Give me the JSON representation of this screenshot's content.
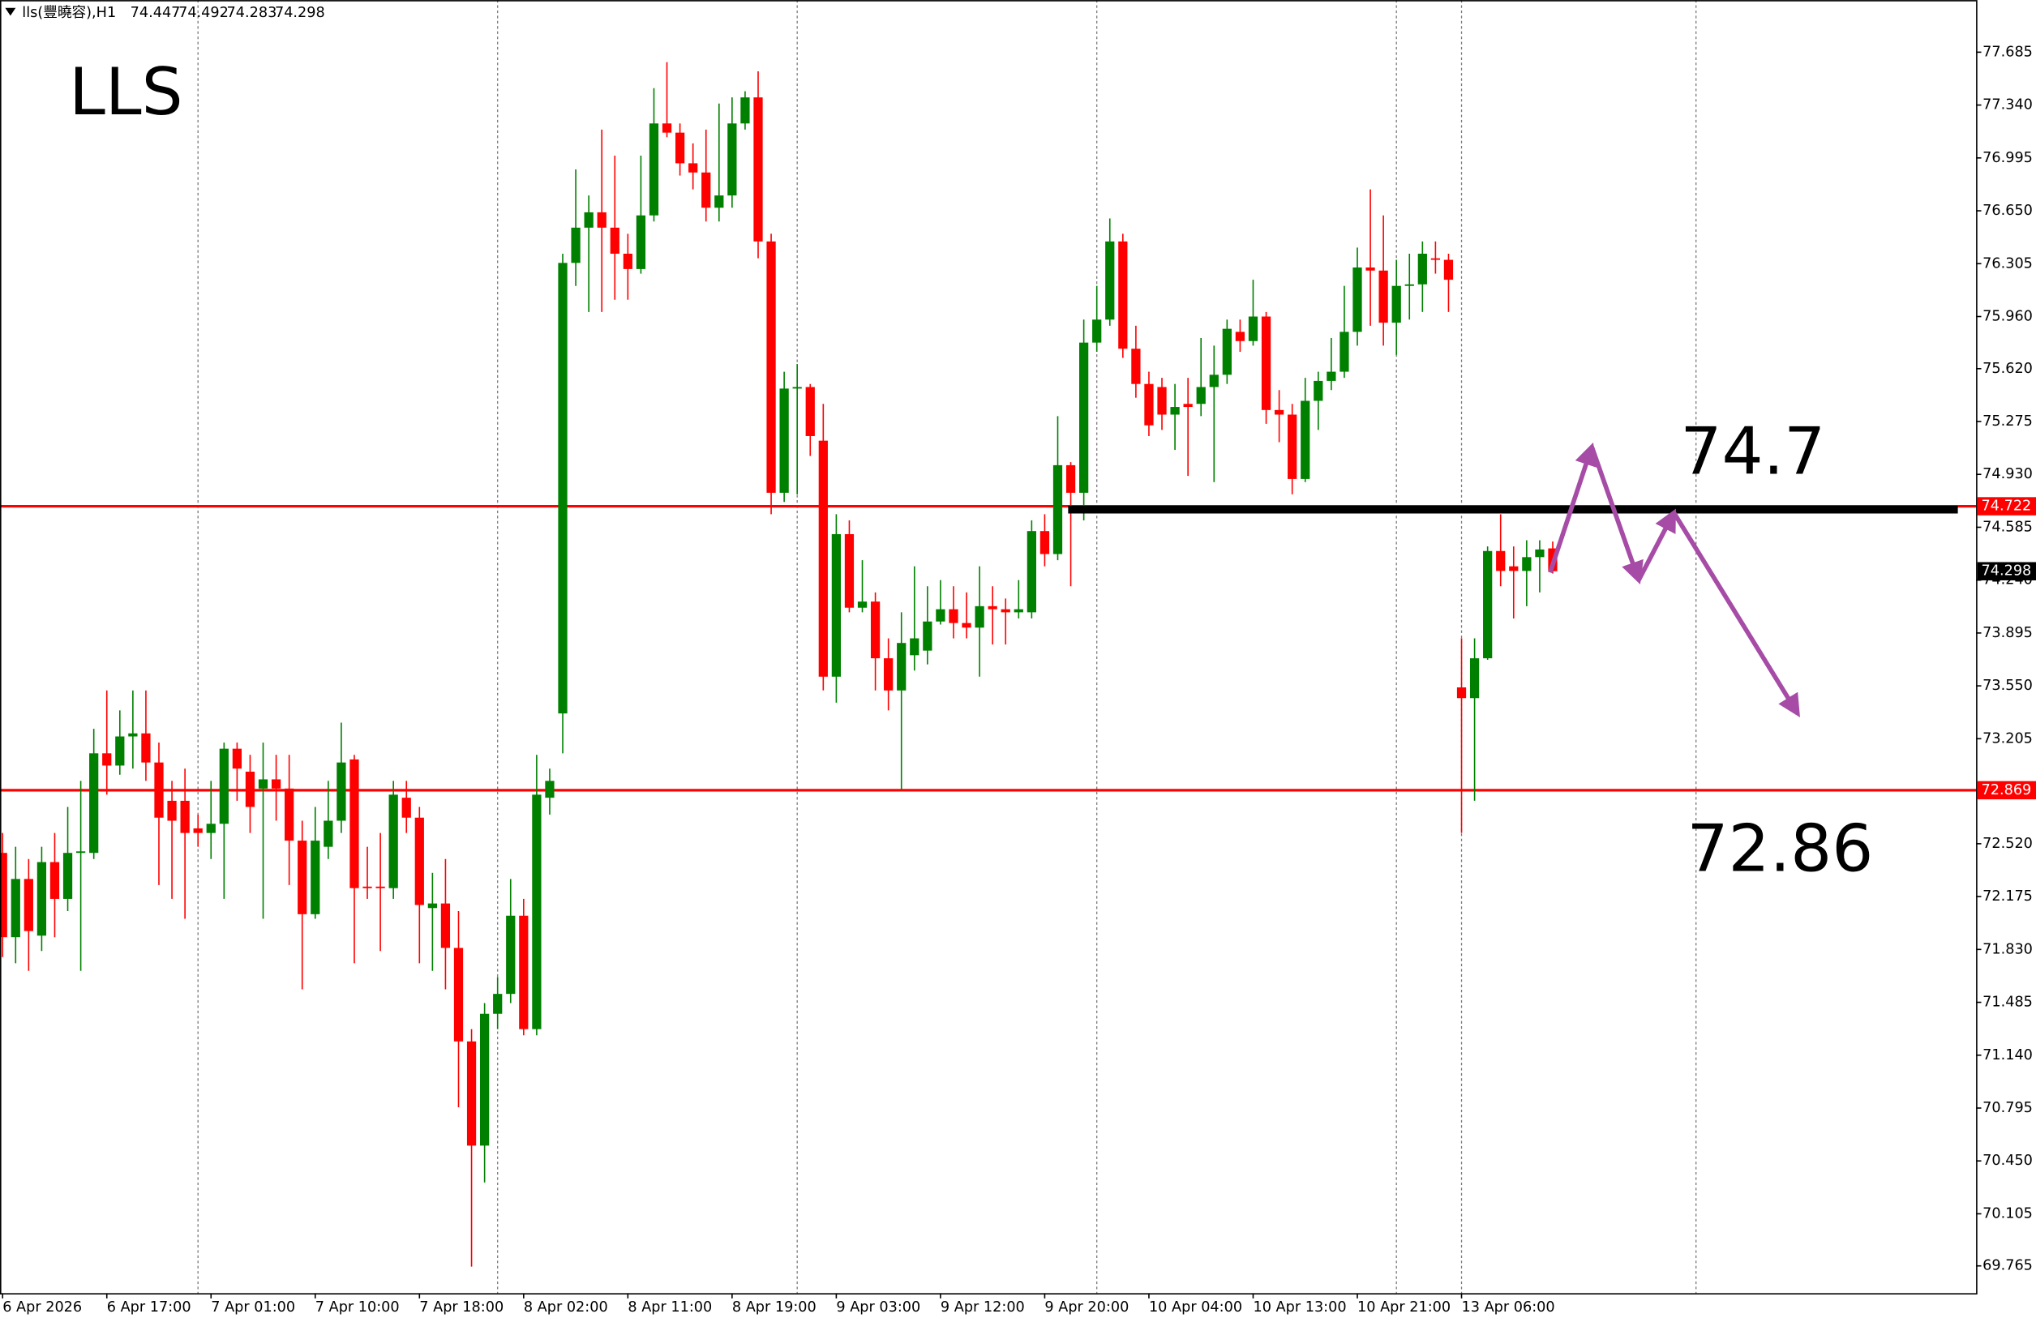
{
  "chart_data": {
    "type": "candlestick",
    "title": "LLS",
    "symbol": "lls(豐曉容),H1",
    "up_color": "#008000",
    "down_color": "#ff0000",
    "xlim": [
      -0.2,
      151.5
    ],
    "ylim": [
      69.587,
      78.025
    ],
    "yticks": [
      77.685,
      {
        "value": 77.34,
        "label": "77.340"
      },
      76.995,
      {
        "value": 76.65,
        "label": "76.650"
      },
      76.305,
      {
        "value": 75.96,
        "label": "75.960"
      },
      {
        "value": 75.62,
        "label": "75.620"
      },
      75.275,
      {
        "value": 74.93,
        "label": "74.930"
      },
      74.585,
      {
        "value": 74.24,
        "label": "74.240"
      },
      73.895,
      {
        "value": 73.55,
        "label": "73.550"
      },
      73.205,
      {
        "value": 72.52,
        "label": "72.520"
      },
      72.175,
      {
        "value": 71.83,
        "label": "71.830"
      },
      71.485,
      {
        "value": 71.14,
        "label": "71.140"
      },
      70.795,
      {
        "value": 70.45,
        "label": "70.450"
      },
      70.105,
      69.765
    ],
    "xticks": [
      {
        "value": 0,
        "label": "6 Apr 2026"
      },
      {
        "value": 8,
        "label": "6 Apr 17:00"
      },
      {
        "value": 16,
        "label": "7 Apr 01:00"
      },
      {
        "value": 24,
        "label": "7 Apr 10:00"
      },
      {
        "value": 32,
        "label": "7 Apr 18:00"
      },
      {
        "value": 40,
        "label": "8 Apr 02:00"
      },
      {
        "value": 48,
        "label": "8 Apr 11:00"
      },
      {
        "value": 56,
        "label": "8 Apr 19:00"
      },
      {
        "value": 64,
        "label": "9 Apr 03:00"
      },
      {
        "value": 72,
        "label": "9 Apr 12:00"
      },
      {
        "value": 80,
        "label": "9 Apr 20:00"
      },
      {
        "value": 88,
        "label": "10 Apr 04:00"
      },
      {
        "value": 96,
        "label": "10 Apr 13:00"
      },
      {
        "value": 104,
        "label": "10 Apr 21:00"
      },
      {
        "value": 112,
        "label": "13 Apr 06:00"
      }
    ],
    "vgrid": [
      15,
      38,
      61,
      84,
      107,
      112,
      130
    ],
    "hlines": [
      74.722,
      72.869
    ],
    "hline_color": "#ff0000",
    "level_line": {
      "value": 74.7,
      "x": [
        81.8,
        150.1
      ],
      "color": "#000000"
    },
    "projection": {
      "x": [
        118.8,
        122,
        125.6,
        128.3,
        137.8
      ],
      "y": [
        74.29,
        75.11,
        74.24,
        74.68,
        73.37
      ],
      "color": "#a64ca6"
    },
    "annotations": [
      "74.7",
      "72.86"
    ],
    "candles": [
      [
        72.46,
        72.59,
        71.78,
        71.91
      ],
      [
        71.91,
        72.5,
        71.74,
        72.29
      ],
      [
        72.29,
        72.42,
        71.69,
        71.95
      ],
      [
        71.92,
        72.5,
        71.82,
        72.4
      ],
      [
        72.4,
        72.59,
        71.91,
        72.16
      ],
      [
        72.16,
        72.76,
        72.08,
        72.46
      ],
      [
        72.46,
        72.93,
        71.69,
        72.47
      ],
      [
        72.46,
        73.27,
        72.42,
        73.11
      ],
      [
        73.11,
        73.52,
        72.84,
        73.03
      ],
      [
        73.03,
        73.39,
        72.97,
        73.22
      ],
      [
        73.22,
        73.52,
        73.01,
        73.24
      ],
      [
        73.24,
        73.52,
        72.93,
        73.05
      ],
      [
        73.05,
        73.18,
        72.25,
        72.69
      ],
      [
        72.8,
        72.93,
        72.16,
        72.67
      ],
      [
        72.8,
        73.01,
        72.03,
        72.59
      ],
      [
        72.62,
        72.71,
        72.5,
        72.59
      ],
      [
        72.59,
        72.93,
        72.42,
        72.65
      ],
      [
        72.65,
        73.18,
        72.16,
        73.14
      ],
      [
        73.14,
        73.18,
        72.8,
        73.01
      ],
      [
        72.99,
        73.1,
        72.59,
        72.76
      ],
      [
        72.88,
        73.18,
        72.03,
        72.94
      ],
      [
        72.94,
        73.1,
        72.67,
        72.88
      ],
      [
        72.88,
        73.1,
        72.25,
        72.54
      ],
      [
        72.54,
        72.67,
        71.57,
        72.06
      ],
      [
        72.06,
        72.76,
        72.03,
        72.54
      ],
      [
        72.5,
        72.93,
        72.42,
        72.67
      ],
      [
        72.67,
        73.31,
        72.59,
        73.05
      ],
      [
        73.07,
        73.1,
        71.74,
        72.23
      ],
      [
        72.24,
        72.5,
        72.16,
        72.23
      ],
      [
        72.24,
        72.59,
        71.82,
        72.23
      ],
      [
        72.23,
        72.93,
        72.16,
        72.84
      ],
      [
        72.82,
        72.93,
        72.59,
        72.69
      ],
      [
        72.69,
        72.76,
        71.74,
        72.12
      ],
      [
        72.1,
        72.33,
        71.69,
        72.13
      ],
      [
        72.13,
        72.42,
        71.57,
        71.84
      ],
      [
        71.84,
        72.08,
        70.8,
        71.23
      ],
      [
        71.23,
        71.31,
        69.76,
        70.55
      ],
      [
        70.55,
        71.48,
        70.31,
        71.41
      ],
      [
        71.41,
        71.65,
        71.31,
        71.54
      ],
      [
        71.54,
        72.29,
        71.48,
        72.05
      ],
      [
        72.05,
        72.16,
        71.27,
        71.31
      ],
      [
        71.31,
        73.1,
        71.27,
        72.84
      ],
      [
        72.82,
        73.01,
        72.71,
        72.93
      ],
      [
        73.37,
        76.37,
        73.11,
        76.31
      ],
      [
        76.31,
        76.92,
        76.16,
        76.54
      ],
      [
        76.54,
        76.75,
        75.99,
        76.64
      ],
      [
        76.64,
        77.18,
        75.99,
        76.54
      ],
      [
        76.54,
        77.01,
        76.07,
        76.37
      ],
      [
        76.37,
        76.5,
        76.07,
        76.27
      ],
      [
        76.27,
        77.01,
        76.24,
        76.62
      ],
      [
        76.62,
        77.45,
        76.58,
        77.22
      ],
      [
        77.22,
        77.62,
        77.13,
        77.16
      ],
      [
        77.16,
        77.22,
        76.88,
        76.96
      ],
      [
        76.96,
        77.09,
        76.79,
        76.9
      ],
      [
        76.9,
        77.18,
        76.58,
        76.67
      ],
      [
        76.67,
        77.35,
        76.58,
        76.75
      ],
      [
        76.75,
        77.39,
        76.67,
        77.22
      ],
      [
        77.22,
        77.43,
        77.18,
        77.39
      ],
      [
        77.39,
        77.56,
        76.34,
        76.45
      ],
      [
        76.45,
        76.5,
        74.67,
        74.81
      ],
      [
        74.81,
        75.6,
        74.75,
        75.49
      ],
      [
        75.49,
        75.65,
        74.8,
        75.5
      ],
      [
        75.5,
        75.52,
        75.05,
        75.18
      ],
      [
        75.15,
        75.39,
        73.52,
        73.61
      ],
      [
        73.61,
        74.67,
        73.44,
        74.54
      ],
      [
        74.54,
        74.63,
        74.03,
        74.06
      ],
      [
        74.06,
        74.37,
        74.03,
        74.1
      ],
      [
        74.1,
        74.16,
        73.52,
        73.73
      ],
      [
        73.73,
        73.86,
        73.39,
        73.52
      ],
      [
        73.52,
        74.03,
        72.87,
        73.83
      ],
      [
        73.75,
        74.33,
        73.65,
        73.86
      ],
      [
        73.78,
        74.2,
        73.69,
        73.97
      ],
      [
        73.97,
        74.24,
        73.95,
        74.05
      ],
      [
        74.05,
        74.2,
        73.86,
        73.96
      ],
      [
        73.96,
        74.16,
        73.86,
        73.93
      ],
      [
        73.93,
        74.33,
        73.61,
        74.07
      ],
      [
        74.07,
        74.2,
        73.82,
        74.05
      ],
      [
        74.05,
        74.12,
        73.82,
        74.03
      ],
      [
        74.03,
        74.24,
        73.99,
        74.05
      ],
      [
        74.03,
        74.63,
        73.99,
        74.56
      ],
      [
        74.56,
        74.67,
        74.33,
        74.41
      ],
      [
        74.41,
        75.31,
        74.37,
        74.99
      ],
      [
        74.99,
        75.01,
        74.2,
        74.81
      ],
      [
        74.81,
        75.94,
        74.63,
        75.79
      ],
      [
        75.79,
        76.16,
        75.73,
        75.94
      ],
      [
        75.94,
        76.6,
        75.9,
        76.45
      ],
      [
        76.45,
        76.5,
        75.69,
        75.75
      ],
      [
        75.75,
        75.9,
        75.43,
        75.52
      ],
      [
        75.52,
        75.6,
        75.18,
        75.25
      ],
      [
        75.5,
        75.56,
        75.22,
        75.32
      ],
      [
        75.32,
        75.52,
        75.09,
        75.37
      ],
      [
        75.39,
        75.56,
        74.92,
        75.37
      ],
      [
        75.39,
        75.82,
        75.31,
        75.5
      ],
      [
        75.5,
        75.77,
        74.88,
        75.58
      ],
      [
        75.58,
        75.94,
        75.52,
        75.88
      ],
      [
        75.86,
        75.94,
        75.73,
        75.8
      ],
      [
        75.8,
        76.2,
        75.77,
        75.96
      ],
      [
        75.96,
        75.99,
        75.26,
        75.35
      ],
      [
        75.35,
        75.48,
        75.14,
        75.32
      ],
      [
        75.32,
        75.39,
        74.8,
        74.9
      ],
      [
        74.9,
        75.56,
        74.88,
        75.41
      ],
      [
        75.41,
        75.6,
        75.22,
        75.54
      ],
      [
        75.54,
        75.82,
        75.48,
        75.6
      ],
      [
        75.6,
        76.16,
        75.56,
        75.86
      ],
      [
        75.86,
        76.41,
        75.77,
        76.28
      ],
      [
        76.28,
        76.79,
        75.9,
        76.26
      ],
      [
        76.26,
        76.62,
        75.77,
        75.92
      ],
      [
        75.92,
        76.33,
        75.71,
        76.16
      ],
      [
        76.16,
        76.37,
        75.94,
        76.17
      ],
      [
        76.17,
        76.45,
        75.99,
        76.37
      ],
      [
        76.34,
        76.45,
        76.24,
        76.33
      ],
      [
        76.33,
        76.37,
        75.99,
        76.2
      ],
      [
        73.54,
        73.86,
        72.59,
        73.47
      ],
      [
        73.47,
        73.86,
        72.8,
        73.73
      ],
      [
        73.73,
        74.46,
        73.72,
        74.43
      ],
      [
        74.43,
        74.67,
        74.2,
        74.3
      ],
      [
        74.33,
        74.46,
        73.99,
        74.3
      ],
      [
        74.3,
        74.5,
        74.07,
        74.39
      ],
      [
        74.39,
        74.5,
        74.16,
        74.44
      ],
      [
        74.447,
        74.492,
        74.283,
        74.298
      ]
    ]
  }
}
